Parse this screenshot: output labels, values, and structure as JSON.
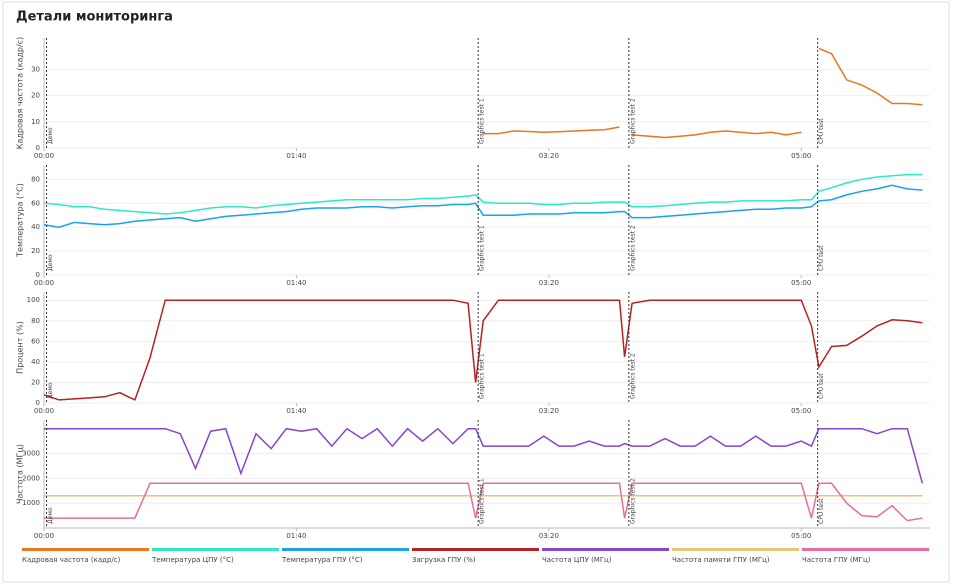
{
  "title": "Детали мониторинга",
  "chart_data": [
    {
      "type": "line",
      "ylabel": "Кадровая частота (кадр/с)",
      "xlim": [
        0,
        351
      ],
      "ylim": [
        0,
        42
      ],
      "yticks": [
        0,
        10,
        20,
        30
      ],
      "xticks": [
        {
          "value": 0,
          "label": "00:00"
        },
        {
          "value": 100,
          "label": "01:40"
        },
        {
          "value": 200,
          "label": "03:20"
        },
        {
          "value": 300,
          "label": "05:00"
        }
      ],
      "markers": [
        {
          "x": 1,
          "label": "Демо"
        },
        {
          "x": 172,
          "label": "Graphics test 1"
        },
        {
          "x": 231.7,
          "label": "Graphics test 2"
        },
        {
          "x": 306.5,
          "label": "CPU test"
        }
      ],
      "x": [
        0,
        6,
        12,
        18,
        24,
        30,
        36,
        42,
        48,
        54,
        60,
        66,
        72,
        78,
        84,
        90,
        96,
        102,
        108,
        114,
        120,
        126,
        132,
        138,
        144,
        150,
        156,
        162,
        168,
        171,
        174,
        180,
        186,
        192,
        198,
        204,
        210,
        216,
        222,
        228,
        230,
        233,
        240,
        246,
        252,
        258,
        264,
        270,
        276,
        282,
        288,
        294,
        300,
        304,
        307,
        312,
        318,
        324,
        330,
        336,
        342,
        348
      ],
      "series": [
        {
          "name": "Кадровая частота (кадр/с)",
          "color": "#e8771f",
          "values": [
            null,
            null,
            null,
            null,
            null,
            null,
            null,
            null,
            null,
            null,
            null,
            null,
            null,
            null,
            null,
            null,
            null,
            null,
            null,
            null,
            null,
            null,
            null,
            null,
            null,
            null,
            null,
            null,
            null,
            null,
            5.5,
            5.5,
            6.5,
            6.3,
            6,
            6.2,
            6.5,
            6.8,
            7,
            8,
            null,
            5,
            4.5,
            4,
            4.5,
            5,
            6,
            6.5,
            6,
            5.5,
            6,
            5,
            6,
            null,
            38,
            36,
            26,
            24,
            21,
            17,
            17,
            16.5
          ]
        }
      ]
    },
    {
      "type": "line",
      "ylabel": "Температура (°C)",
      "xlim": [
        0,
        351
      ],
      "ylim": [
        0,
        92
      ],
      "yticks": [
        0,
        20,
        40,
        60,
        80
      ],
      "xticks": [
        {
          "value": 0,
          "label": "00:00"
        },
        {
          "value": 100,
          "label": "01:40"
        },
        {
          "value": 200,
          "label": "03:20"
        },
        {
          "value": 300,
          "label": "05:00"
        }
      ],
      "markers": [
        {
          "x": 1,
          "label": "Демо"
        },
        {
          "x": 172,
          "label": "Graphics test 1"
        },
        {
          "x": 231.7,
          "label": "Graphics test 2"
        },
        {
          "x": 306.5,
          "label": "CPU test"
        }
      ],
      "x": [
        0,
        6,
        12,
        18,
        24,
        30,
        36,
        42,
        48,
        54,
        60,
        66,
        72,
        78,
        84,
        90,
        96,
        102,
        108,
        114,
        120,
        126,
        132,
        138,
        144,
        150,
        156,
        162,
        168,
        171,
        174,
        180,
        186,
        192,
        198,
        204,
        210,
        216,
        222,
        228,
        230,
        233,
        240,
        246,
        252,
        258,
        264,
        270,
        276,
        282,
        288,
        294,
        300,
        304,
        307,
        312,
        318,
        324,
        330,
        336,
        342,
        348
      ],
      "series": [
        {
          "name": "Температура ЦПУ (°C)",
          "color": "#2ee8c4",
          "values": [
            60,
            59,
            57,
            57,
            55,
            54,
            53,
            52,
            51,
            52,
            54,
            56,
            57,
            57,
            56,
            58,
            59,
            60,
            61,
            62,
            63,
            63,
            63,
            63,
            63,
            64,
            64,
            65,
            66,
            67,
            61,
            60,
            60,
            60,
            59,
            59,
            60,
            60,
            61,
            61,
            61,
            57,
            57,
            58,
            59,
            60,
            61,
            61,
            62,
            62,
            62,
            62,
            63,
            63,
            70,
            73,
            77,
            80,
            82,
            83,
            84,
            84
          ]
        },
        {
          "name": "Температура ГПУ (°C)",
          "color": "#1aa3e8",
          "values": [
            42,
            40,
            44,
            43,
            42,
            43,
            45,
            46,
            47,
            48,
            45,
            47,
            49,
            50,
            51,
            52,
            53,
            55,
            56,
            56,
            56,
            57,
            57,
            56,
            57,
            58,
            58,
            59,
            59,
            60,
            50,
            50,
            50,
            51,
            51,
            51,
            52,
            52,
            52,
            53,
            53,
            48,
            48,
            49,
            50,
            51,
            52,
            53,
            54,
            55,
            55,
            56,
            56,
            57,
            62,
            63,
            67,
            70,
            72,
            75,
            72,
            71
          ]
        }
      ]
    },
    {
      "type": "line",
      "ylabel": "Процент (%)",
      "xlim": [
        0,
        351
      ],
      "ylim": [
        0,
        108
      ],
      "yticks": [
        0,
        20,
        40,
        60,
        80,
        100
      ],
      "xticks": [
        {
          "value": 0,
          "label": "00:00"
        },
        {
          "value": 100,
          "label": "01:40"
        },
        {
          "value": 200,
          "label": "03:20"
        },
        {
          "value": 300,
          "label": "05:00"
        }
      ],
      "markers": [
        {
          "x": 1,
          "label": "Демо"
        },
        {
          "x": 172,
          "label": "Graphics test 1"
        },
        {
          "x": 231.7,
          "label": "Graphics test 2"
        },
        {
          "x": 306.5,
          "label": "CPU test"
        }
      ],
      "x": [
        0,
        6,
        12,
        18,
        24,
        30,
        36,
        42,
        48,
        54,
        60,
        66,
        72,
        78,
        84,
        90,
        96,
        102,
        108,
        114,
        120,
        126,
        132,
        138,
        144,
        150,
        156,
        162,
        168,
        171,
        174,
        180,
        186,
        192,
        198,
        204,
        210,
        216,
        222,
        228,
        230,
        233,
        240,
        246,
        252,
        258,
        264,
        270,
        276,
        282,
        288,
        294,
        300,
        304,
        307,
        312,
        318,
        324,
        330,
        336,
        342,
        348
      ],
      "series": [
        {
          "name": "Загрузка ГПУ (%)",
          "color": "#b52222",
          "values": [
            8,
            3,
            4,
            5,
            6,
            10,
            3,
            44,
            100,
            100,
            100,
            100,
            100,
            100,
            100,
            100,
            100,
            100,
            100,
            100,
            100,
            100,
            100,
            100,
            100,
            100,
            100,
            100,
            97,
            20,
            80,
            100,
            100,
            100,
            100,
            100,
            100,
            100,
            100,
            100,
            45,
            97,
            100,
            100,
            100,
            100,
            100,
            100,
            100,
            100,
            100,
            100,
            100,
            75,
            35,
            55,
            56,
            65,
            75,
            81,
            80,
            78
          ]
        }
      ]
    },
    {
      "type": "line",
      "ylabel": "Частота (МГц)",
      "xlim": [
        0,
        351
      ],
      "ylim": [
        0,
        4350
      ],
      "yticks": [
        1000,
        2000,
        3000
      ],
      "xticks": [
        {
          "value": 0,
          "label": "00:00"
        },
        {
          "value": 100,
          "label": "01:40"
        },
        {
          "value": 200,
          "label": "03:20"
        },
        {
          "value": 300,
          "label": "05:00"
        }
      ],
      "markers": [
        {
          "x": 1,
          "label": "Демо"
        },
        {
          "x": 172,
          "label": "Graphics test 1"
        },
        {
          "x": 231.7,
          "label": "Graphics test 2"
        },
        {
          "x": 306.5,
          "label": "CPU test"
        }
      ],
      "x": [
        0,
        6,
        12,
        18,
        24,
        30,
        36,
        42,
        48,
        54,
        60,
        66,
        72,
        78,
        84,
        90,
        96,
        102,
        108,
        114,
        120,
        126,
        132,
        138,
        144,
        150,
        156,
        162,
        168,
        171,
        174,
        180,
        186,
        192,
        198,
        204,
        210,
        216,
        222,
        228,
        230,
        233,
        240,
        246,
        252,
        258,
        264,
        270,
        276,
        282,
        288,
        294,
        300,
        304,
        307,
        312,
        318,
        324,
        330,
        336,
        342,
        348
      ],
      "series": [
        {
          "name": "Частота ЦПУ (МГц)",
          "color": "#8a44c8",
          "values": [
            4000,
            4000,
            4000,
            4000,
            4000,
            4000,
            4000,
            4000,
            4000,
            3800,
            2400,
            3900,
            4000,
            2200,
            3800,
            3200,
            4000,
            3900,
            4000,
            3300,
            4000,
            3600,
            4000,
            3300,
            4000,
            3500,
            4000,
            3400,
            4000,
            4000,
            3300,
            3300,
            3300,
            3300,
            3700,
            3300,
            3300,
            3500,
            3300,
            3300,
            3400,
            3300,
            3300,
            3600,
            3300,
            3300,
            3700,
            3300,
            3300,
            3700,
            3300,
            3300,
            3500,
            3300,
            4000,
            4000,
            4000,
            4000,
            3800,
            4000,
            4000,
            1800
          ]
        },
        {
          "name": "Частота памяти ГПУ (МГц)",
          "color": "#e6c47a",
          "values": [
            1300,
            1300,
            1300,
            1300,
            1300,
            1300,
            1300,
            1300,
            1300,
            1300,
            1300,
            1300,
            1300,
            1300,
            1300,
            1300,
            1300,
            1300,
            1300,
            1300,
            1300,
            1300,
            1300,
            1300,
            1300,
            1300,
            1300,
            1300,
            1300,
            1300,
            1300,
            1300,
            1300,
            1300,
            1300,
            1300,
            1300,
            1300,
            1300,
            1300,
            1300,
            1300,
            1300,
            1300,
            1300,
            1300,
            1300,
            1300,
            1300,
            1300,
            1300,
            1300,
            1300,
            1300,
            1300,
            1300,
            1300,
            1300,
            1300,
            1300,
            1300,
            1300
          ]
        },
        {
          "name": "Частота ГПУ (МГц)",
          "color": "#e86ca0",
          "values": [
            400,
            400,
            400,
            400,
            400,
            400,
            400,
            1800,
            1800,
            1800,
            1800,
            1800,
            1800,
            1800,
            1800,
            1800,
            1800,
            1800,
            1800,
            1800,
            1800,
            1800,
            1800,
            1800,
            1800,
            1800,
            1800,
            1800,
            1800,
            400,
            1800,
            1800,
            1800,
            1800,
            1800,
            1800,
            1800,
            1800,
            1800,
            1800,
            400,
            1800,
            1800,
            1800,
            1800,
            1800,
            1800,
            1800,
            1800,
            1800,
            1800,
            1800,
            1800,
            400,
            1800,
            1800,
            1000,
            500,
            450,
            900,
            300,
            400
          ]
        }
      ]
    }
  ]
}
